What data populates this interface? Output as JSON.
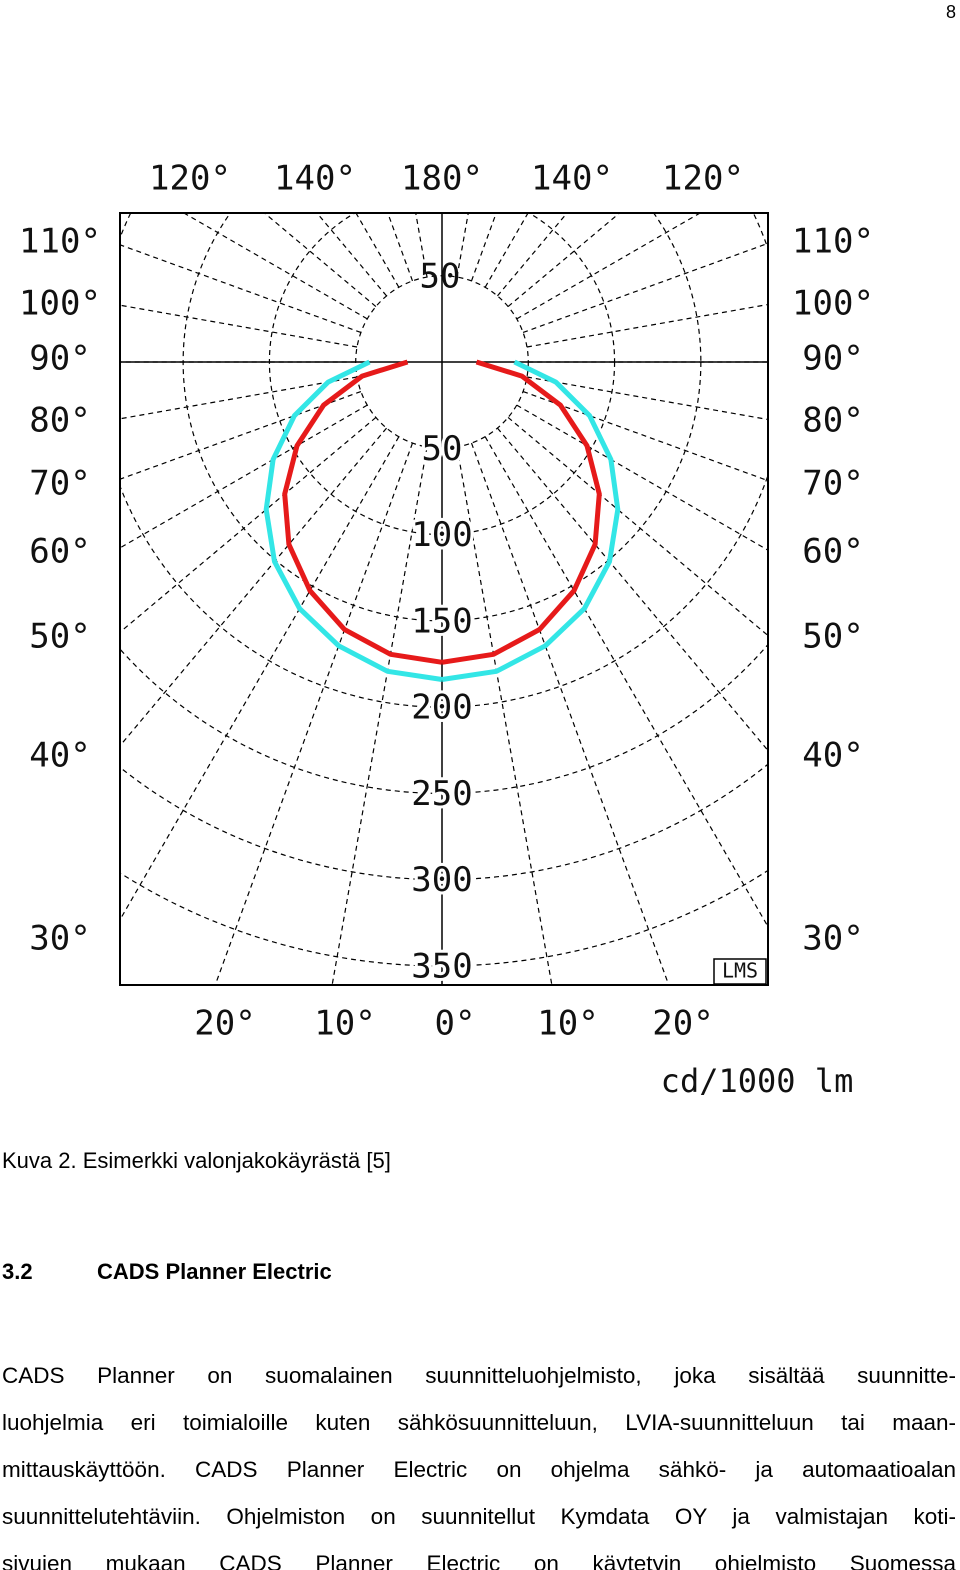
{
  "page_number": "8",
  "chart_data": {
    "type": "polar",
    "rlim": [
      0,
      350
    ],
    "rticks": [
      50,
      100,
      150,
      200,
      250,
      300,
      350
    ],
    "angles": [
      0,
      10,
      20,
      30,
      40,
      50,
      60,
      70,
      80,
      90
    ],
    "series": [
      {
        "color": "#33e6e6",
        "values": [
          184,
          182,
          175,
          165,
          151,
          133,
          113,
          91,
          67,
          42
        ]
      },
      {
        "color": "#e61a1a",
        "values": [
          174,
          172,
          165,
          153,
          138,
          119,
          97,
          73,
          47,
          20
        ]
      }
    ],
    "angle_labels": {
      "top": [
        "120°",
        "140°",
        "180°",
        "140°",
        "120°"
      ],
      "left": [
        "110°",
        "100°",
        "90°",
        "80°",
        "70°",
        "60°",
        "50°",
        "40°",
        "30°"
      ],
      "right": [
        "110°",
        "100°",
        "90°",
        "80°",
        "70°",
        "60°",
        "50°",
        "40°",
        "30°"
      ],
      "bottom": [
        "20°",
        "10°",
        "0°",
        "10°",
        "20°"
      ]
    },
    "unit": "cd/1000 lm",
    "logo": "LMS"
  },
  "caption": "Kuva 2. Esimerkki valonjakokäyrästä [5]",
  "heading": {
    "number": "3.2",
    "title": "CADS Planner Electric"
  },
  "paragraph": [
    "CADS Planner on suomalainen suunnitteluohjelmisto, joka sisältää suunnitte-",
    "luohjelmia eri toimialoille kuten sähkösuunnitteluun, LVIA-suunnitteluun tai maan-",
    "mittauskäyttöön. CADS Planner Electric on ohjelma sähkö- ja automaatioalan",
    "suunnittelutehtäviin. Ohjelmiston on suunnitellut Kymdata OY ja valmistajan koti-",
    "sivujen mukaan CADS Planner Electric on käytetyin ohjelmisto Suomessa"
  ]
}
